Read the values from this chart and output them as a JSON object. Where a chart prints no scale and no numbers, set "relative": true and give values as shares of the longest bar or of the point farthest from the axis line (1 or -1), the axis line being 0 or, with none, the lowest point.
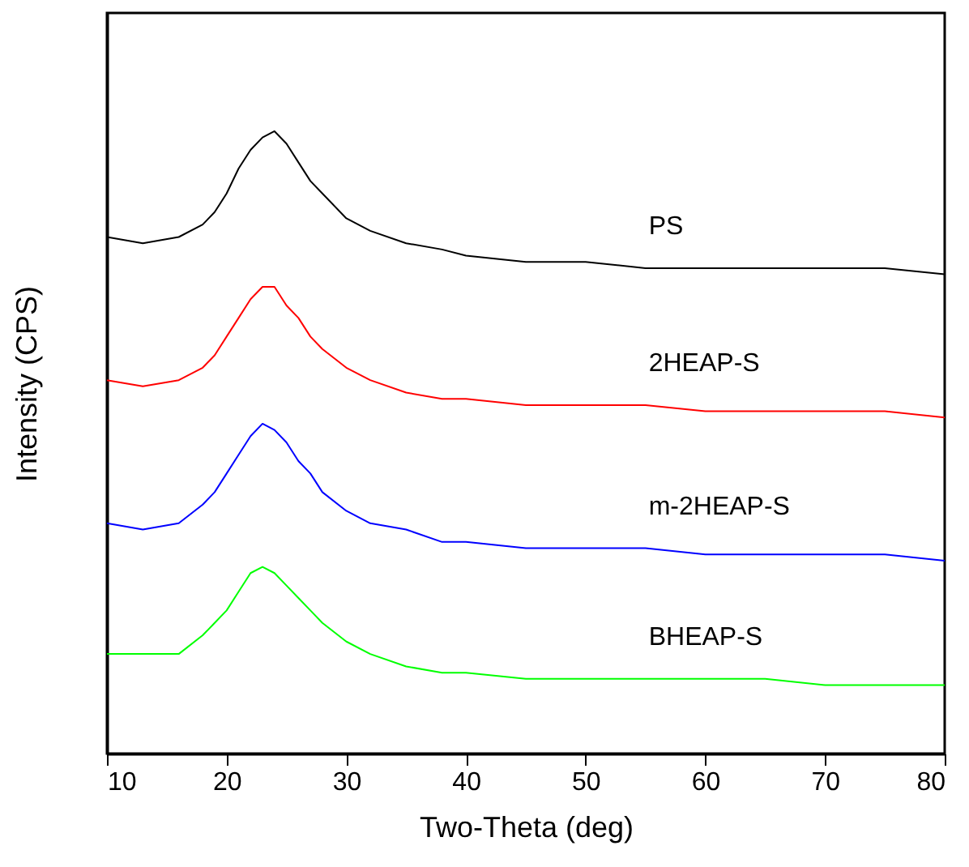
{
  "chart_data": {
    "type": "line",
    "relative": true,
    "xlabel": "Two-Theta (deg)",
    "ylabel": "Intensity (CPS)",
    "xlim": [
      10,
      80
    ],
    "xticks": [
      10,
      20,
      30,
      40,
      50,
      60,
      70,
      80
    ],
    "grid": false,
    "marker": "none",
    "line_style": "solid",
    "x": [
      10,
      13,
      16,
      18,
      19,
      20,
      21,
      22,
      23,
      24,
      25,
      26,
      27,
      28,
      30,
      32,
      35,
      38,
      40,
      45,
      50,
      55,
      60,
      65,
      70,
      75,
      80
    ],
    "series": [
      {
        "name": "PS",
        "color": "#000000",
        "values": [
          0.83,
          0.82,
          0.83,
          0.85,
          0.87,
          0.9,
          0.94,
          0.97,
          0.99,
          1.0,
          0.98,
          0.95,
          0.92,
          0.9,
          0.86,
          0.84,
          0.82,
          0.81,
          0.8,
          0.79,
          0.79,
          0.78,
          0.78,
          0.78,
          0.78,
          0.78,
          0.77
        ]
      },
      {
        "name": "2HEAP-S",
        "color": "#ff0000",
        "values": [
          0.6,
          0.59,
          0.6,
          0.62,
          0.64,
          0.67,
          0.7,
          0.73,
          0.75,
          0.75,
          0.72,
          0.7,
          0.67,
          0.65,
          0.62,
          0.6,
          0.58,
          0.57,
          0.57,
          0.56,
          0.56,
          0.56,
          0.55,
          0.55,
          0.55,
          0.55,
          0.54
        ]
      },
      {
        "name": "m-2HEAP-S",
        "color": "#0000ff",
        "values": [
          0.37,
          0.36,
          0.37,
          0.4,
          0.42,
          0.45,
          0.48,
          0.51,
          0.53,
          0.52,
          0.5,
          0.47,
          0.45,
          0.42,
          0.39,
          0.37,
          0.36,
          0.34,
          0.34,
          0.33,
          0.33,
          0.33,
          0.32,
          0.32,
          0.32,
          0.32,
          0.31
        ]
      },
      {
        "name": "BHEAP-S",
        "color": "#00ff00",
        "values": [
          0.16,
          0.16,
          0.16,
          0.19,
          0.21,
          0.23,
          0.26,
          0.29,
          0.3,
          0.29,
          0.27,
          0.25,
          0.23,
          0.21,
          0.18,
          0.16,
          0.14,
          0.13,
          0.13,
          0.12,
          0.12,
          0.12,
          0.12,
          0.12,
          0.11,
          0.11,
          0.11
        ]
      }
    ]
  }
}
